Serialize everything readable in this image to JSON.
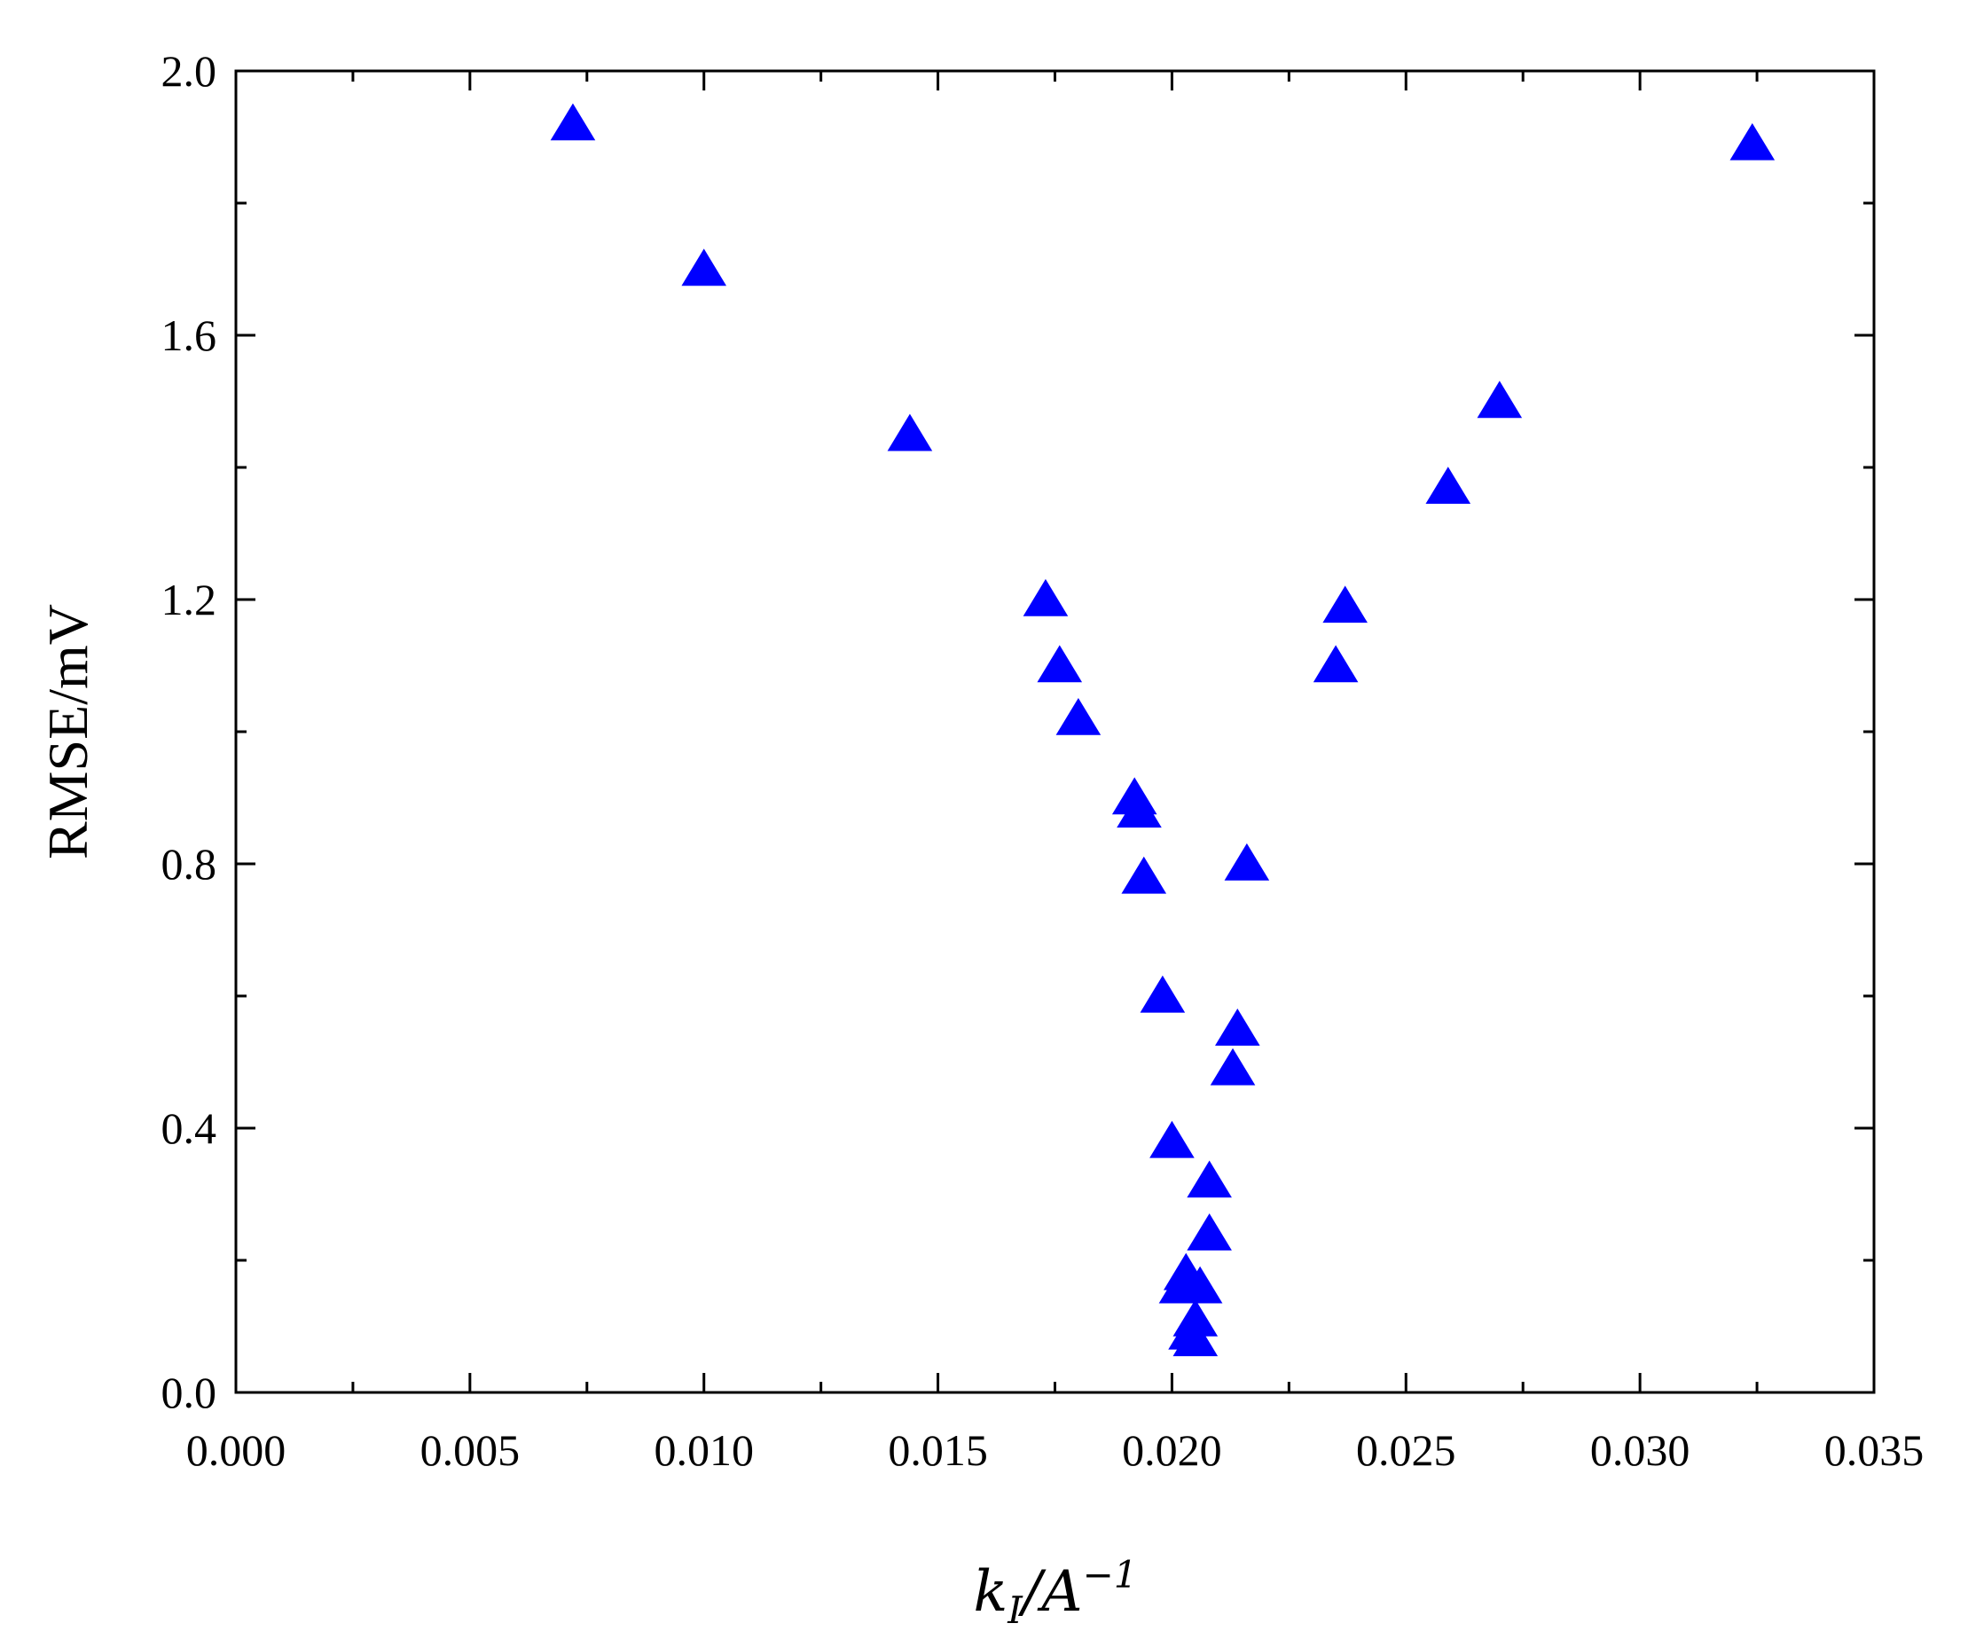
{
  "chart_data": {
    "type": "scatter",
    "marker": "triangle",
    "marker_color": "#0000ff",
    "xlabel": "k_I/A^-1",
    "xlabel_parts": {
      "k": "k",
      "sub": "I",
      "slash": "/A",
      "sup": "−1"
    },
    "ylabel": "RMSE/mV",
    "xlim": [
      0.0,
      0.035
    ],
    "ylim": [
      0.0,
      2.0
    ],
    "x_ticks": [
      "0.000",
      "0.005",
      "0.010",
      "0.015",
      "0.020",
      "0.025",
      "0.030",
      "0.035"
    ],
    "y_ticks": [
      "0.0",
      "0.4",
      "0.8",
      "1.2",
      "1.6",
      "2.0"
    ],
    "grid": false,
    "series": [
      {
        "points": [
          {
            "x": 0.0072,
            "y": 1.92
          },
          {
            "x": 0.01,
            "y": 1.7
          },
          {
            "x": 0.0144,
            "y": 1.45
          },
          {
            "x": 0.0173,
            "y": 1.2
          },
          {
            "x": 0.0176,
            "y": 1.1
          },
          {
            "x": 0.018,
            "y": 1.02
          },
          {
            "x": 0.0192,
            "y": 0.9
          },
          {
            "x": 0.0193,
            "y": 0.88
          },
          {
            "x": 0.0194,
            "y": 0.78
          },
          {
            "x": 0.0198,
            "y": 0.6
          },
          {
            "x": 0.02,
            "y": 0.38
          },
          {
            "x": 0.0202,
            "y": 0.16
          },
          {
            "x": 0.0203,
            "y": 0.18
          },
          {
            "x": 0.0204,
            "y": 0.09
          },
          {
            "x": 0.0205,
            "y": 0.11
          },
          {
            "x": 0.0205,
            "y": 0.08
          },
          {
            "x": 0.0206,
            "y": 0.16
          },
          {
            "x": 0.0208,
            "y": 0.24
          },
          {
            "x": 0.0208,
            "y": 0.32
          },
          {
            "x": 0.0213,
            "y": 0.49
          },
          {
            "x": 0.0214,
            "y": 0.55
          },
          {
            "x": 0.0216,
            "y": 0.8
          },
          {
            "x": 0.0235,
            "y": 1.1
          },
          {
            "x": 0.0237,
            "y": 1.19
          },
          {
            "x": 0.0259,
            "y": 1.37
          },
          {
            "x": 0.027,
            "y": 1.5
          },
          {
            "x": 0.0324,
            "y": 1.89
          }
        ]
      }
    ]
  }
}
